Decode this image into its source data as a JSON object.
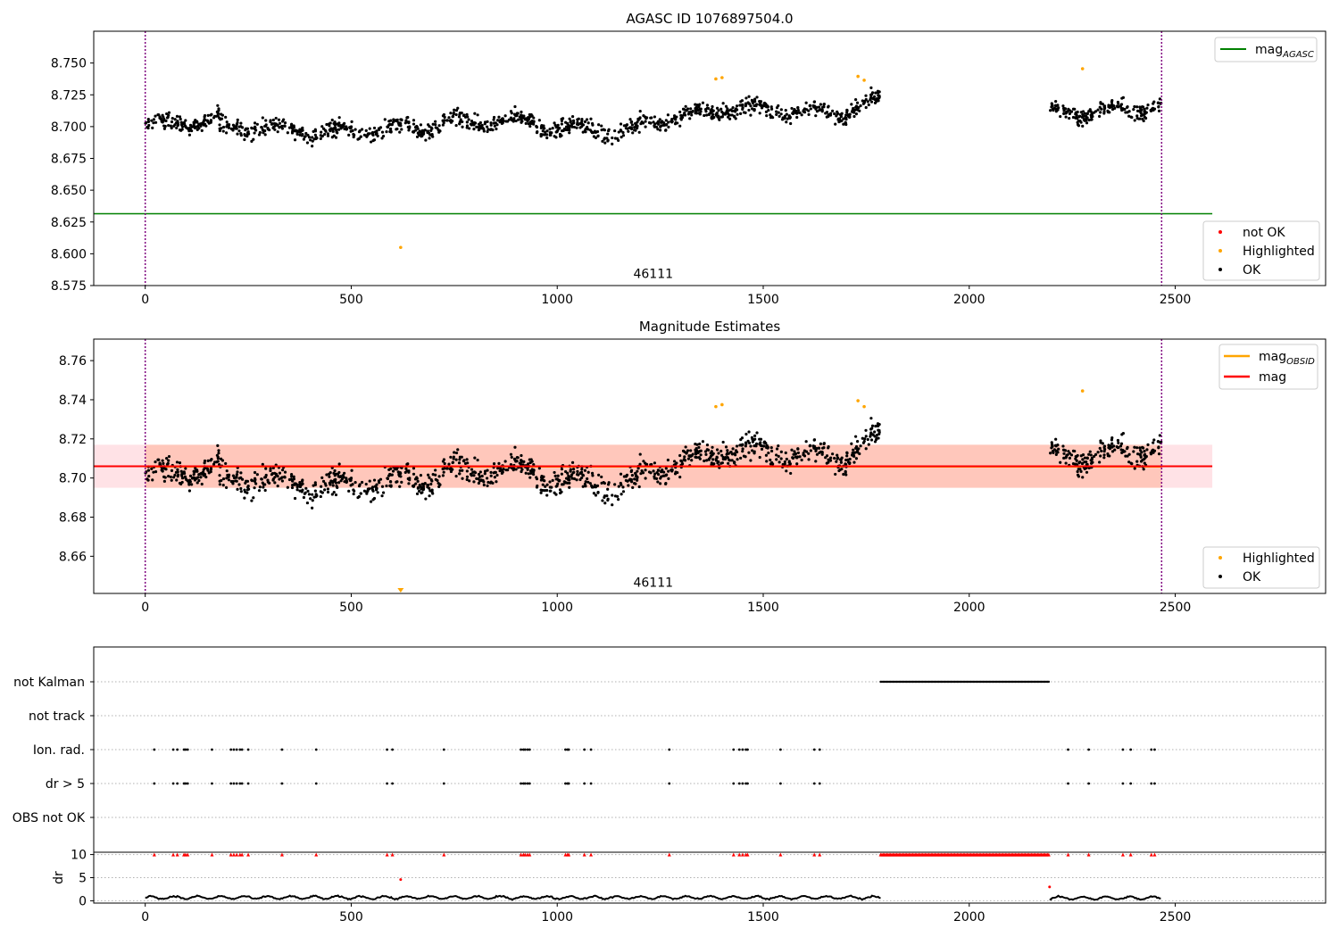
{
  "chart_data": [
    {
      "type": "scatter",
      "title": "AGASC ID 1076897504.0",
      "xlim": [
        -125,
        2865
      ],
      "ylim": [
        8.575,
        8.775
      ],
      "xticks": [
        0,
        500,
        1000,
        1500,
        2000,
        2500
      ],
      "yticks": [
        8.575,
        8.6,
        8.625,
        8.65,
        8.675,
        8.7,
        8.725,
        8.75
      ],
      "ytick_labels": [
        "8.575",
        "8.600",
        "8.625",
        "8.650",
        "8.675",
        "8.700",
        "8.725",
        "8.750"
      ],
      "vlines": [
        0,
        2467
      ],
      "annotation": {
        "text": "46111",
        "x": 1233,
        "y": 8.581
      },
      "lines": [
        {
          "name": "mag_AGASC",
          "x": [
            -125,
            2590
          ],
          "y": [
            8.6315,
            8.6315
          ],
          "color": "#008000"
        }
      ],
      "series": [
        {
          "name": "not OK",
          "color": "#ff0000",
          "points": []
        },
        {
          "name": "Highlighted",
          "color": "#ffa500",
          "points": [
            [
              620,
              8.605
            ],
            [
              1385,
              8.7375
            ],
            [
              1400,
              8.7385
            ],
            [
              1730,
              8.7395
            ],
            [
              1745,
              8.7365
            ],
            [
              2275,
              8.7455
            ]
          ]
        },
        {
          "name": "OK",
          "color": "#000000",
          "segments": [
            {
              "x0": 0,
              "x1": 180,
              "n": 130,
              "base0": 8.7,
              "base1": 8.706,
              "spread": 0.013
            },
            {
              "x0": 180,
              "x1": 480,
              "n": 200,
              "base0": 8.7,
              "base1": 8.696,
              "spread": 0.015
            },
            {
              "x0": 480,
              "x1": 700,
              "n": 150,
              "base0": 8.696,
              "base1": 8.7,
              "spread": 0.014
            },
            {
              "x0": 700,
              "x1": 950,
              "n": 170,
              "base0": 8.702,
              "base1": 8.705,
              "spread": 0.014
            },
            {
              "x0": 950,
              "x1": 1200,
              "n": 170,
              "base0": 8.7,
              "base1": 8.696,
              "spread": 0.014
            },
            {
              "x0": 1200,
              "x1": 1400,
              "n": 140,
              "base0": 8.703,
              "base1": 8.713,
              "spread": 0.013
            },
            {
              "x0": 1400,
              "x1": 1700,
              "n": 200,
              "base0": 8.715,
              "base1": 8.71,
              "spread": 0.014
            },
            {
              "x0": 1700,
              "x1": 1785,
              "n": 70,
              "base0": 8.712,
              "base1": 8.722,
              "spread": 0.012
            },
            {
              "x0": 2195,
              "x1": 2467,
              "n": 190,
              "base0": 8.71,
              "base1": 8.716,
              "spread": 0.013
            }
          ]
        }
      ],
      "legends": [
        [
          "mag_AGASC"
        ],
        [
          "not OK",
          "Highlighted",
          "OK"
        ]
      ]
    },
    {
      "type": "scatter",
      "title": "Magnitude Estimates",
      "xlim": [
        -125,
        2865
      ],
      "ylim": [
        8.641,
        8.771
      ],
      "xticks": [
        0,
        500,
        1000,
        1500,
        2000,
        2500
      ],
      "yticks": [
        8.66,
        8.68,
        8.7,
        8.72,
        8.74,
        8.76
      ],
      "ytick_labels": [
        "8.66",
        "8.68",
        "8.70",
        "8.72",
        "8.74",
        "8.76"
      ],
      "vlines": [
        0,
        2467
      ],
      "annotation": {
        "text": "46111",
        "x": 1233,
        "y": 8.6445
      },
      "bands": [
        {
          "x": [
            -125,
            2590
          ],
          "y": [
            8.695,
            8.717
          ],
          "color": "#ffb6c1",
          "opacity": 0.4
        },
        {
          "x": [
            0,
            2467
          ],
          "y": [
            8.695,
            8.717
          ],
          "color": "#ffa07a",
          "opacity": 0.4
        }
      ],
      "lines": [
        {
          "name": "mag_OBSID",
          "x": [
            0,
            2467
          ],
          "y": [
            8.7058,
            8.7058
          ],
          "color": "#ffa500"
        },
        {
          "name": "mag",
          "x": [
            -125,
            2590
          ],
          "y": [
            8.706,
            8.706
          ],
          "color": "#ff0000"
        }
      ],
      "series": [
        {
          "name": "Highlighted",
          "color": "#ffa500",
          "points": [
            [
              1385,
              8.7365
            ],
            [
              1400,
              8.7375
            ],
            [
              1730,
              8.7395
            ],
            [
              1745,
              8.7365
            ],
            [
              2275,
              8.7445
            ]
          ],
          "off_axis_marker": {
            "x": 620,
            "direction": "down"
          }
        },
        {
          "name": "OK",
          "color": "#000000",
          "reuse_from_panel": 0
        }
      ],
      "legends": [
        [
          "mag_OBSID",
          "mag"
        ],
        [
          "Highlighted",
          "OK"
        ]
      ]
    },
    {
      "type": "scatter",
      "title": "",
      "xlim": [
        -125,
        2865
      ],
      "categories": [
        "not Kalman",
        "not track",
        "Ion. rad.",
        "dr > 5",
        "OBS not OK"
      ],
      "flags": {
        "not Kalman": {
          "ranges": [
            [
              1785,
              2195,
              3
            ]
          ]
        },
        "not track": {
          "ranges": []
        },
        "Ion. rad.": {
          "x": [
            22,
            68,
            78,
            94,
            98,
            103,
            162,
            208,
            215,
            222,
            230,
            235,
            250,
            332,
            415,
            587,
            600,
            725,
            912,
            918,
            922,
            928,
            933,
            1020,
            1025,
            1028,
            1066,
            1082,
            1272,
            1428,
            1442,
            1450,
            1458,
            1462,
            1542,
            1624,
            1637,
            2240,
            2290,
            2373,
            2392,
            2442,
            2450
          ]
        },
        "dr > 5": {
          "same_as": "Ion. rad."
        },
        "OBS not OK": {
          "x": []
        }
      }
    },
    {
      "type": "line",
      "title": "",
      "xlim": [
        -125,
        2865
      ],
      "ylim": [
        -0.5,
        10.5
      ],
      "xticks": [
        0,
        500,
        1000,
        1500,
        2000,
        2500
      ],
      "yticks": [
        0,
        5,
        10
      ],
      "ylabel": "dr",
      "series": [
        {
          "name": "dr",
          "color": "#000000",
          "segments": [
            [
              0,
              1785,
              0.7,
              0.3
            ],
            [
              2195,
              2467,
              0.6,
              0.3
            ]
          ]
        },
        {
          "name": "dr > 5",
          "color": "#ff0000",
          "marker": "triangle",
          "y": 10,
          "x_from": "Ion. rad.",
          "extra": [
            [
              1785,
              2195,
              3
            ]
          ],
          "outliers": [
            [
              620,
              4.6
            ],
            [
              2195,
              3.0
            ]
          ]
        }
      ]
    }
  ]
}
